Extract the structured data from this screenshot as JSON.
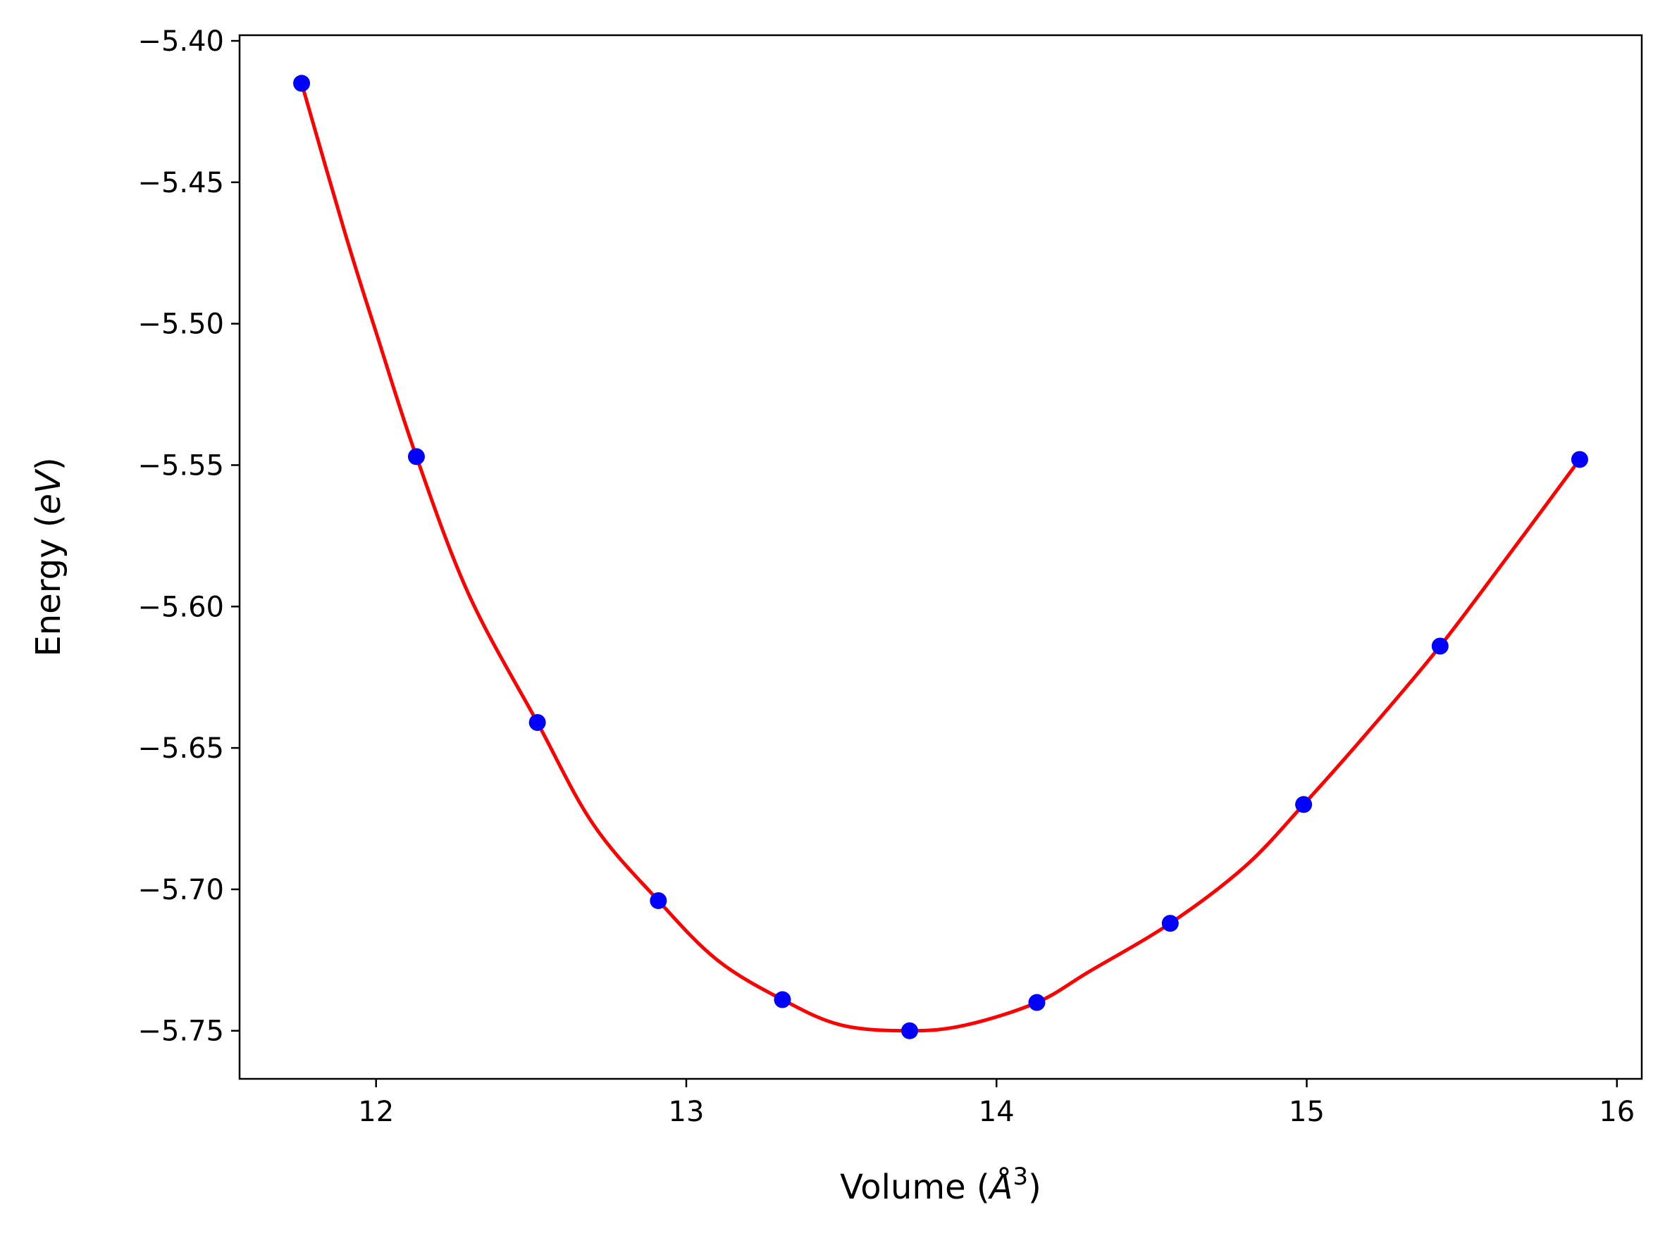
{
  "chart_data": {
    "type": "line",
    "xlabel": "Volume (",
    "xlabel_unit": "Å",
    "xlabel_exp": "3",
    "xlabel_close": ")",
    "ylabel": "Energy (",
    "ylabel_unit": "eV",
    "ylabel_close": ")",
    "xlim": [
      11.56,
      16.08
    ],
    "ylim": [
      -5.767,
      -5.398
    ],
    "x_ticks": [
      12,
      13,
      14,
      15,
      16
    ],
    "x_tick_labels": [
      "12",
      "13",
      "14",
      "15",
      "16"
    ],
    "y_ticks": [
      -5.4,
      -5.45,
      -5.5,
      -5.55,
      -5.6,
      -5.65,
      -5.7,
      -5.75
    ],
    "y_tick_labels": [
      "−5.40",
      "−5.45",
      "−5.50",
      "−5.55",
      "−5.60",
      "−5.65",
      "−5.70",
      "−5.75"
    ],
    "grid": false,
    "series": [
      {
        "kind": "scatter",
        "color": "#0000ff",
        "x": [
          11.76,
          12.13,
          12.52,
          12.91,
          13.31,
          13.72,
          14.13,
          14.56,
          14.99,
          15.43,
          15.88
        ],
        "y": [
          -5.415,
          -5.547,
          -5.641,
          -5.704,
          -5.739,
          -5.75,
          -5.74,
          -5.712,
          -5.67,
          -5.614,
          -5.548
        ]
      },
      {
        "kind": "line",
        "color": "#ff0000",
        "x": [
          11.76,
          11.9,
          12.0,
          12.13,
          12.3,
          12.52,
          12.7,
          12.91,
          13.1,
          13.31,
          13.5,
          13.72,
          13.9,
          14.13,
          14.3,
          14.56,
          14.8,
          14.99,
          15.2,
          15.43,
          15.65,
          15.88
        ],
        "y": [
          -5.415,
          -5.468,
          -5.503,
          -5.547,
          -5.596,
          -5.641,
          -5.677,
          -5.704,
          -5.725,
          -5.739,
          -5.748,
          -5.75,
          -5.748,
          -5.74,
          -5.729,
          -5.712,
          -5.692,
          -5.67,
          -5.644,
          -5.614,
          -5.582,
          -5.548
        ]
      }
    ]
  }
}
